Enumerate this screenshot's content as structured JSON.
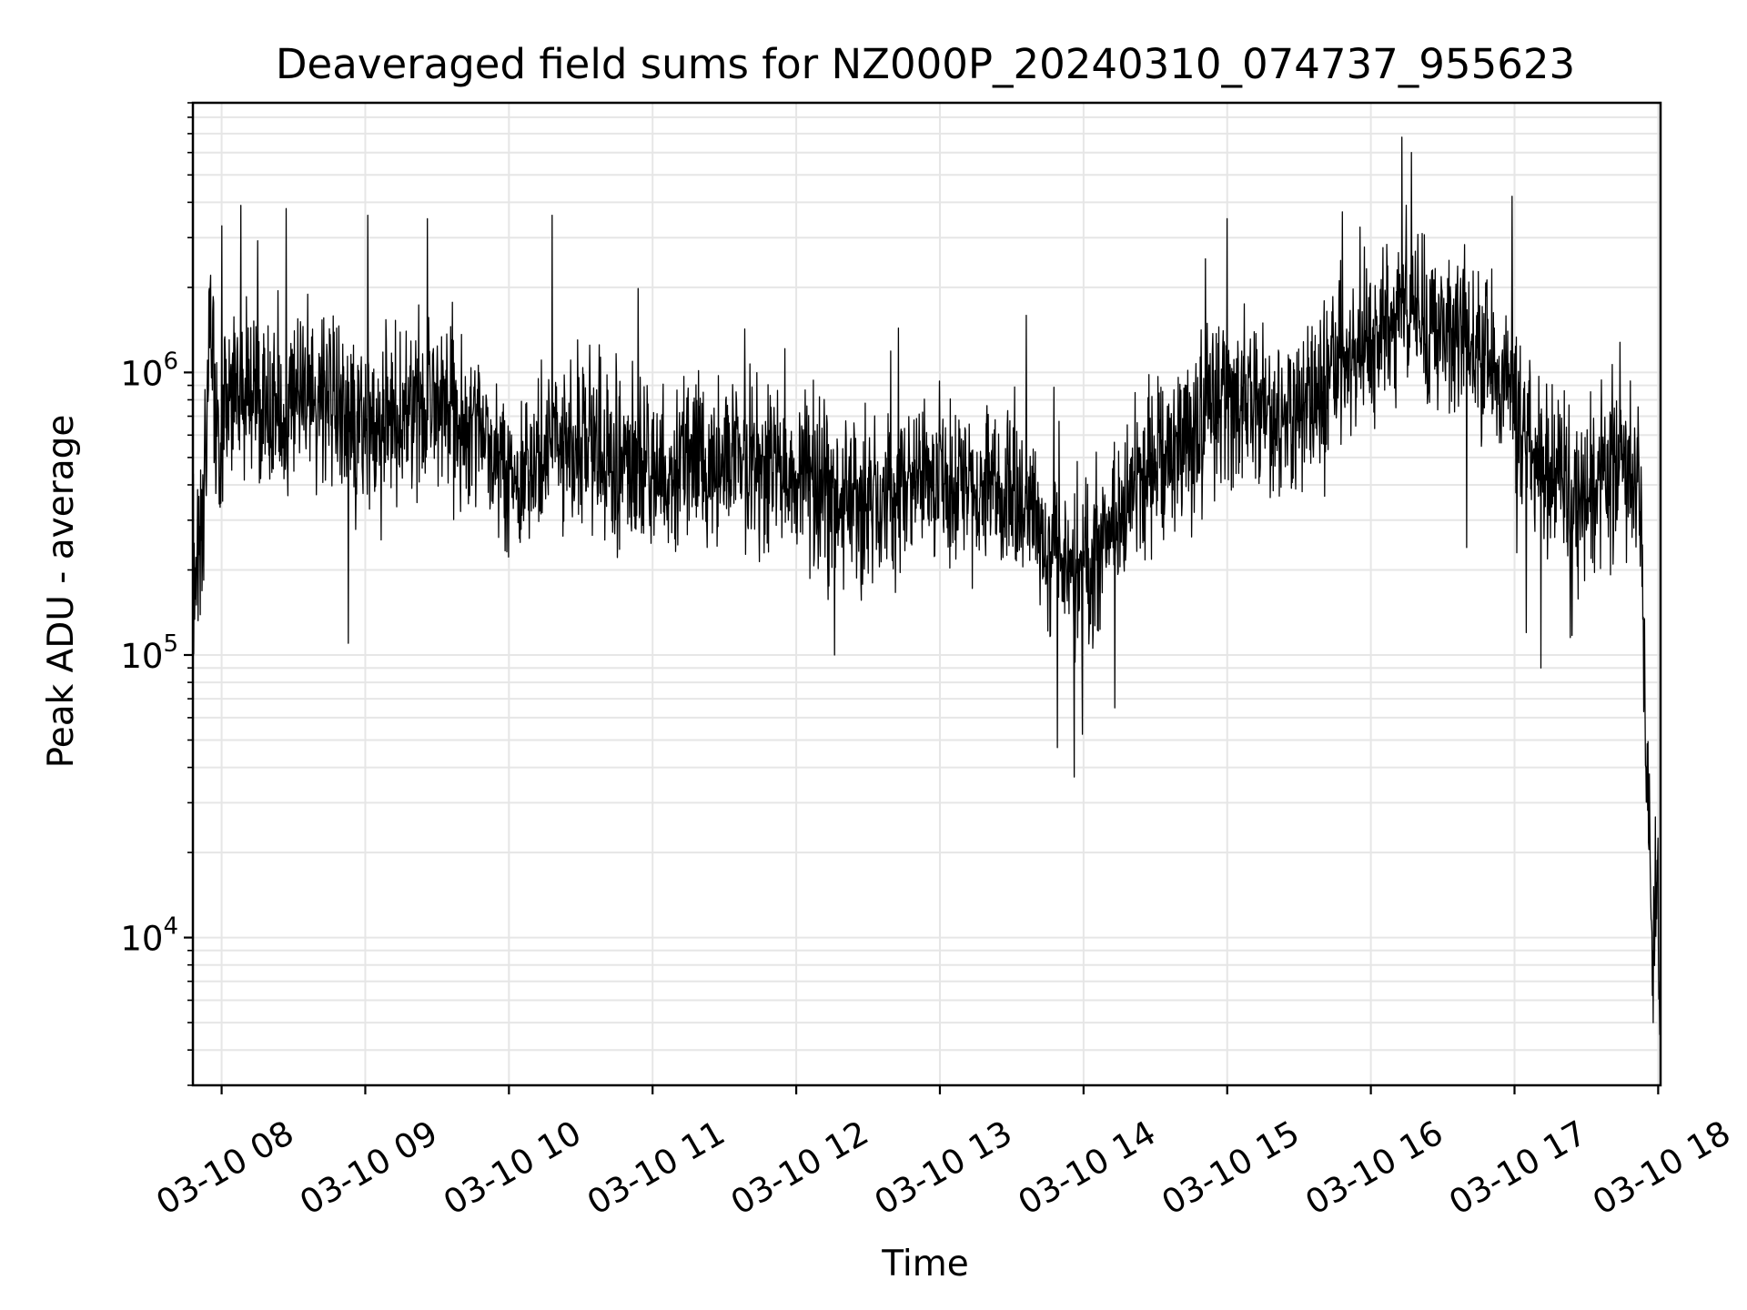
{
  "chart_data": {
    "type": "line",
    "title": "Deaveraged field sums for NZ000P_20240310_074737_955623",
    "xlabel": "Time",
    "ylabel": "Peak ADU - average",
    "y_scale": "log",
    "grid": true,
    "line_color": "#000000",
    "grid_color": "#e6e6e6",
    "x_range": [
      "2024-03-10 07:48",
      "2024-03-10 18:01"
    ],
    "ylim": [
      3000,
      9000000
    ],
    "x_ticks": [
      {
        "value": "2024-03-10 08:00",
        "label": "03-10 08"
      },
      {
        "value": "2024-03-10 09:00",
        "label": "03-10 09"
      },
      {
        "value": "2024-03-10 10:00",
        "label": "03-10 10"
      },
      {
        "value": "2024-03-10 11:00",
        "label": "03-10 11"
      },
      {
        "value": "2024-03-10 12:00",
        "label": "03-10 12"
      },
      {
        "value": "2024-03-10 13:00",
        "label": "03-10 13"
      },
      {
        "value": "2024-03-10 14:00",
        "label": "03-10 14"
      },
      {
        "value": "2024-03-10 15:00",
        "label": "03-10 15"
      },
      {
        "value": "2024-03-10 16:00",
        "label": "03-10 16"
      },
      {
        "value": "2024-03-10 17:00",
        "label": "03-10 17"
      },
      {
        "value": "2024-03-10 18:00",
        "label": "03-10 18"
      }
    ],
    "y_ticks": [
      {
        "value": 10000,
        "base": "10",
        "exponent": "4"
      },
      {
        "value": 100000,
        "base": "10",
        "exponent": "5"
      },
      {
        "value": 1000000,
        "base": "10",
        "exponent": "6"
      }
    ],
    "series": [
      {
        "points": [
          [
            "2024-03-10 07:48",
            180000
          ],
          [
            "2024-03-10 07:51",
            260000
          ],
          [
            "2024-03-10 07:53",
            420000
          ],
          [
            "2024-03-10 07:55",
            1800000
          ],
          [
            "2024-03-10 07:57",
            700000
          ],
          [
            "2024-03-10 07:59",
            600000
          ],
          [
            "2024-03-10 08:05",
            1000000
          ],
          [
            "2024-03-10 08:15",
            800000
          ],
          [
            "2024-03-10 08:30",
            800000
          ],
          [
            "2024-03-10 08:45",
            900000
          ],
          [
            "2024-03-10 09:00",
            600000
          ],
          [
            "2024-03-10 09:15",
            650000
          ],
          [
            "2024-03-10 09:30",
            800000
          ],
          [
            "2024-03-10 09:45",
            650000
          ],
          [
            "2024-03-10 10:00",
            450000
          ],
          [
            "2024-03-10 10:30",
            550000
          ],
          [
            "2024-03-10 11:00",
            450000
          ],
          [
            "2024-03-10 11:30",
            500000
          ],
          [
            "2024-03-10 12:00",
            450000
          ],
          [
            "2024-03-10 12:15",
            350000
          ],
          [
            "2024-03-10 12:30",
            350000
          ],
          [
            "2024-03-10 13:00",
            420000
          ],
          [
            "2024-03-10 13:30",
            400000
          ],
          [
            "2024-03-10 13:45",
            250000
          ],
          [
            "2024-03-10 14:00",
            200000
          ],
          [
            "2024-03-10 14:15",
            300000
          ],
          [
            "2024-03-10 14:30",
            500000
          ],
          [
            "2024-03-10 15:00",
            800000
          ],
          [
            "2024-03-10 15:30",
            700000
          ],
          [
            "2024-03-10 15:45",
            1000000
          ],
          [
            "2024-03-10 16:00",
            1300000
          ],
          [
            "2024-03-10 16:15",
            1800000
          ],
          [
            "2024-03-10 16:30",
            1500000
          ],
          [
            "2024-03-10 16:45",
            1300000
          ],
          [
            "2024-03-10 17:00",
            800000
          ],
          [
            "2024-03-10 17:15",
            400000
          ],
          [
            "2024-03-10 17:30",
            350000
          ],
          [
            "2024-03-10 17:45",
            500000
          ],
          [
            "2024-03-10 17:52",
            450000
          ],
          [
            "2024-03-10 17:54",
            120000
          ],
          [
            "2024-03-10 17:56",
            25000
          ],
          [
            "2024-03-10 17:58",
            12000
          ],
          [
            "2024-03-10 18:00",
            15000
          ],
          [
            "2024-03-10 18:01",
            4000
          ]
        ],
        "noise_amplitude_decades": 0.45,
        "spikes": [
          [
            "2024-03-10 08:00",
            3300000
          ],
          [
            "2024-03-10 08:08",
            3900000
          ],
          [
            "2024-03-10 08:27",
            3800000
          ],
          [
            "2024-03-10 09:01",
            3600000
          ],
          [
            "2024-03-10 09:26",
            3500000
          ],
          [
            "2024-03-10 10:18",
            3600000
          ],
          [
            "2024-03-10 15:00",
            3500000
          ],
          [
            "2024-03-10 15:48",
            3700000
          ],
          [
            "2024-03-10 16:13",
            6800000
          ],
          [
            "2024-03-10 16:17",
            6000000
          ],
          [
            "2024-03-10 16:59",
            4200000
          ],
          [
            "2024-03-10 13:49",
            47000
          ],
          [
            "2024-03-10 13:56",
            37000
          ],
          [
            "2024-03-10 14:13",
            65000
          ],
          [
            "2024-03-10 08:53",
            110000
          ],
          [
            "2024-03-10 12:16",
            100000
          ],
          [
            "2024-03-10 16:40",
            240000
          ],
          [
            "2024-03-10 17:01",
            230000
          ],
          [
            "2024-03-10 17:05",
            120000
          ],
          [
            "2024-03-10 17:11",
            90000
          ],
          [
            "2024-03-10 17:58",
            5000
          ],
          [
            "2024-03-10 17:54",
            63000
          ]
        ]
      }
    ]
  }
}
